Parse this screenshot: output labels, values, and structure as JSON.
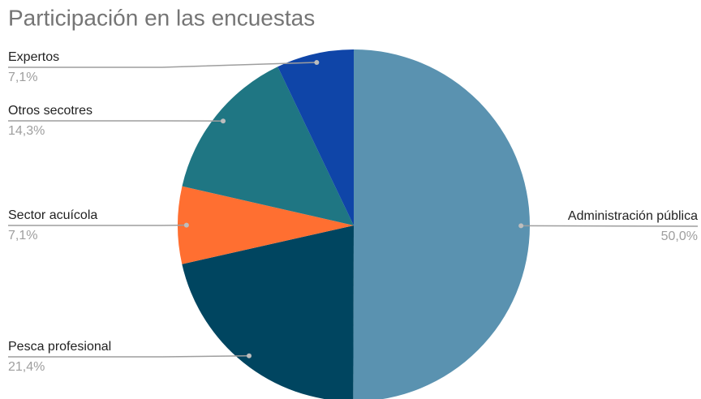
{
  "chart_data": {
    "type": "pie",
    "title": "Participación en las encuestas",
    "categories": [
      "Administración pública",
      "Pesca profesional",
      "Sector acuícola",
      "Otros secotres",
      "Expertos"
    ],
    "values": [
      50.0,
      21.4,
      7.1,
      14.3,
      7.1
    ],
    "value_labels": [
      "50,0%",
      "21,4%",
      "7,1%",
      "14,3%",
      "7,1%"
    ],
    "colors": [
      "#5a92b0",
      "#004560",
      "#ff6f31",
      "#1f7683",
      "#0f45a8"
    ]
  }
}
